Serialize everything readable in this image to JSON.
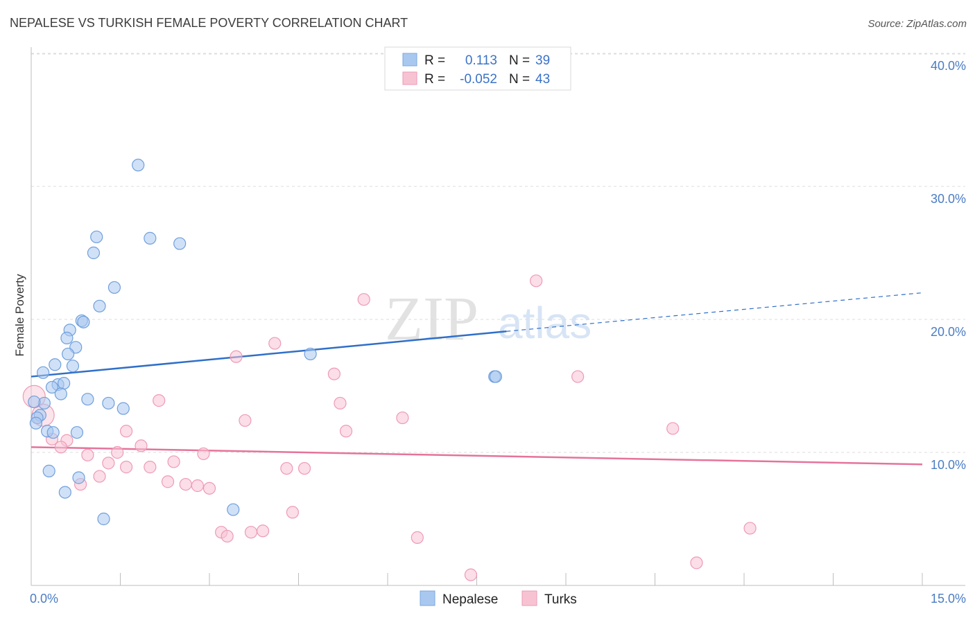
{
  "title": "NEPALESE VS TURKISH FEMALE POVERTY CORRELATION CHART",
  "source": "Source: ZipAtlas.com",
  "watermark": {
    "zip": "ZIP",
    "atlas": "atlas"
  },
  "legend_box": {
    "rows": [
      {
        "r_label": "R =",
        "r_value": "0.113",
        "n_label": "N =",
        "n_value": "39",
        "color": "#a9c8f0",
        "stroke": "#7aa7e0"
      },
      {
        "r_label": "R =",
        "r_value": "-0.052",
        "n_label": "N =",
        "n_value": "43",
        "color": "#f7c3d3",
        "stroke": "#ee9ab5"
      }
    ]
  },
  "chart_data": {
    "type": "scatter",
    "title": "NEPALESE VS TURKISH FEMALE POVERTY CORRELATION CHART",
    "xlabel": "",
    "ylabel": "Female Poverty",
    "xlim": [
      0,
      15
    ],
    "ylim": [
      0,
      40
    ],
    "x_tick_labels": [
      "0.0%",
      "15.0%"
    ],
    "y_ticks": [
      10,
      20,
      30,
      40
    ],
    "y_tick_labels": [
      "10.0%",
      "20.0%",
      "30.0%",
      "40.0%"
    ],
    "grid": "horizontal dashed",
    "legend": "bottom-center",
    "series": [
      {
        "name": "Nepalese",
        "color": "#a9c8f0",
        "stroke": "#6f9fdc",
        "trend_color": "#2f6fc9",
        "trend": {
          "x0": 0,
          "y0": 15.7,
          "x1": 8.0,
          "y1": 19.1,
          "dash_x_end": 15.0,
          "dash_y_end": 22.0
        },
        "points": [
          [
            1.8,
            31.6
          ],
          [
            1.1,
            26.2
          ],
          [
            2.0,
            26.1
          ],
          [
            2.5,
            25.7
          ],
          [
            1.05,
            25.0
          ],
          [
            1.4,
            22.4
          ],
          [
            1.15,
            21.0
          ],
          [
            0.85,
            19.9
          ],
          [
            0.88,
            19.8
          ],
          [
            0.65,
            19.2
          ],
          [
            0.6,
            18.6
          ],
          [
            0.75,
            17.9
          ],
          [
            0.62,
            17.4
          ],
          [
            4.7,
            17.4
          ],
          [
            0.4,
            16.6
          ],
          [
            0.7,
            16.5
          ],
          [
            0.2,
            16.0
          ],
          [
            7.8,
            15.7
          ],
          [
            7.82,
            15.7
          ],
          [
            0.45,
            15.1
          ],
          [
            0.55,
            15.2
          ],
          [
            0.35,
            14.9
          ],
          [
            0.5,
            14.4
          ],
          [
            0.95,
            14.0
          ],
          [
            1.3,
            13.7
          ],
          [
            0.22,
            13.7
          ],
          [
            0.05,
            13.8
          ],
          [
            1.55,
            13.3
          ],
          [
            0.15,
            12.8
          ],
          [
            0.1,
            12.6
          ],
          [
            0.08,
            12.2
          ],
          [
            0.27,
            11.6
          ],
          [
            0.37,
            11.5
          ],
          [
            0.77,
            11.5
          ],
          [
            0.3,
            8.6
          ],
          [
            0.8,
            8.1
          ],
          [
            0.57,
            7.0
          ],
          [
            3.4,
            5.7
          ],
          [
            1.22,
            5.0
          ]
        ]
      },
      {
        "name": "Turks",
        "color": "#f7c3d3",
        "stroke": "#ee9ab5",
        "trend_color": "#e5739b",
        "trend": {
          "x0": 0,
          "y0": 10.4,
          "x1": 15.0,
          "y1": 9.1
        },
        "points": [
          [
            0.05,
            14.2
          ],
          [
            0.2,
            12.8
          ],
          [
            8.5,
            22.9
          ],
          [
            5.6,
            21.5
          ],
          [
            4.1,
            18.2
          ],
          [
            3.45,
            17.2
          ],
          [
            5.1,
            15.9
          ],
          [
            9.2,
            15.7
          ],
          [
            2.15,
            13.9
          ],
          [
            5.2,
            13.7
          ],
          [
            6.25,
            12.6
          ],
          [
            3.6,
            12.4
          ],
          [
            10.8,
            11.8
          ],
          [
            1.6,
            11.6
          ],
          [
            5.3,
            11.6
          ],
          [
            0.35,
            11.0
          ],
          [
            0.6,
            10.9
          ],
          [
            0.5,
            10.4
          ],
          [
            1.85,
            10.5
          ],
          [
            0.95,
            9.8
          ],
          [
            1.45,
            10.0
          ],
          [
            2.9,
            9.9
          ],
          [
            1.3,
            9.2
          ],
          [
            2.4,
            9.3
          ],
          [
            1.6,
            8.9
          ],
          [
            2.0,
            8.9
          ],
          [
            4.3,
            8.8
          ],
          [
            4.6,
            8.8
          ],
          [
            1.15,
            8.2
          ],
          [
            0.83,
            7.6
          ],
          [
            2.3,
            7.8
          ],
          [
            2.6,
            7.6
          ],
          [
            2.8,
            7.5
          ],
          [
            3.0,
            7.3
          ],
          [
            4.4,
            5.5
          ],
          [
            3.2,
            4.0
          ],
          [
            3.3,
            3.7
          ],
          [
            3.7,
            4.0
          ],
          [
            3.9,
            4.1
          ],
          [
            6.5,
            3.6
          ],
          [
            12.1,
            4.3
          ],
          [
            11.2,
            1.7
          ],
          [
            7.4,
            0.8
          ]
        ]
      }
    ]
  }
}
